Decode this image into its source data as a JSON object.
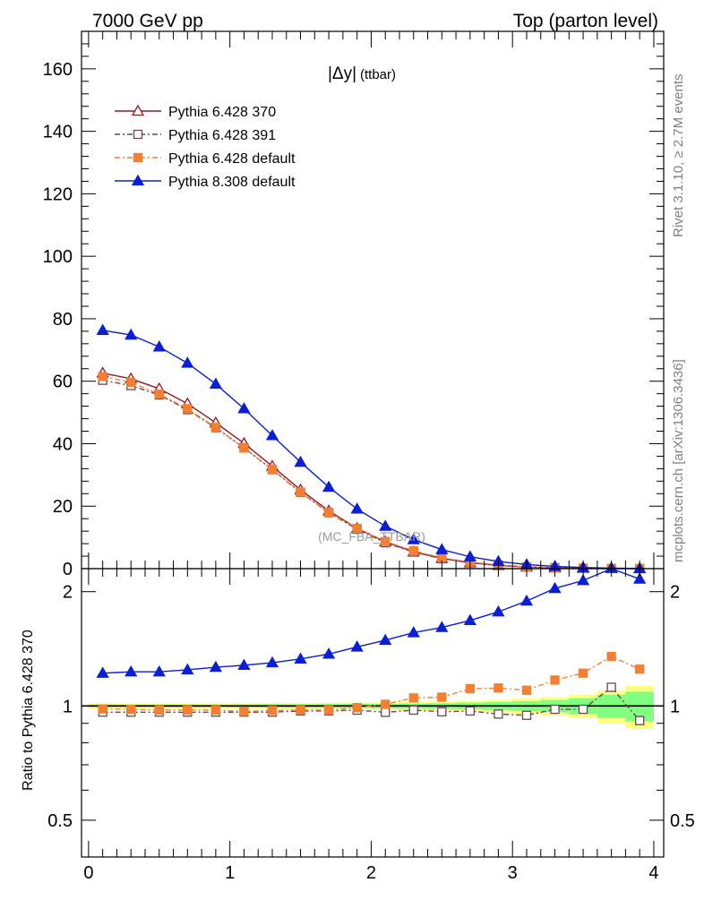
{
  "header": {
    "left": "7000 GeV pp",
    "right": "Top (parton level)"
  },
  "side_labels": {
    "rivet": "Rivet 3.1.10, ≥ 2.7M events",
    "mcplots": "mcplots.cern.ch [arXiv:1306.3436]"
  },
  "watermark": "(MC_FBA_TTBAR)",
  "colors": {
    "p370": "#9b1520",
    "p391": "#6e4456",
    "pdef": "#f47f30",
    "p8": "#0a1ed6",
    "band_outer": "#ffff80",
    "band_inner": "#80ff80"
  },
  "chart_data": [
    {
      "type": "line",
      "title_main": "|Δy|",
      "title_sub": "(ttbar)",
      "xlim": [
        -0.05,
        4.07
      ],
      "ylim": [
        0,
        172
      ],
      "yticks": [
        0,
        20,
        40,
        60,
        80,
        100,
        120,
        140,
        160
      ],
      "x": [
        0.1,
        0.3,
        0.5,
        0.7,
        0.9,
        1.1,
        1.3,
        1.5,
        1.7,
        1.9,
        2.1,
        2.3,
        2.5,
        2.7,
        2.9,
        3.1,
        3.3,
        3.5,
        3.7,
        3.9
      ],
      "series": [
        {
          "name": "Pythia 6.428 370",
          "key": "p370",
          "marker": "triangle-open",
          "dash": "",
          "values": [
            62.6,
            60.8,
            57.6,
            52.8,
            46.7,
            40.1,
            32.8,
            25.2,
            18.5,
            12.9,
            8.6,
            5.4,
            3.3,
            1.9,
            1.05,
            0.55,
            0.28,
            0.13,
            0.06,
            0.025
          ]
        },
        {
          "name": "Pythia 6.428 391",
          "key": "p391",
          "marker": "square-open",
          "dash": "6,3,2,3",
          "values": [
            60.3,
            58.6,
            55.6,
            50.9,
            45.1,
            38.7,
            31.7,
            24.4,
            17.9,
            12.6,
            8.3,
            5.3,
            3.2,
            1.85,
            1.0,
            0.52,
            0.27,
            0.125,
            0.065,
            0.023
          ]
        },
        {
          "name": "Pythia 6.428 default",
          "key": "pdef",
          "marker": "square-filled",
          "dash": "6,3,2,3",
          "values": [
            61.5,
            59.6,
            55.9,
            51.2,
            45.2,
            38.6,
            31.8,
            24.5,
            18.0,
            12.9,
            8.7,
            5.7,
            3.5,
            2.1,
            1.17,
            0.61,
            0.34,
            0.165,
            0.085,
            0.031
          ]
        },
        {
          "name": "Pythia 8.308 default",
          "key": "p8",
          "marker": "triangle-filled",
          "dash": "",
          "values": [
            76.3,
            74.8,
            71.0,
            65.8,
            59.1,
            51.2,
            42.6,
            34.1,
            26.1,
            19.1,
            13.6,
            9.3,
            6.1,
            3.8,
            2.3,
            1.3,
            0.72,
            0.36,
            0.15,
            0.055
          ]
        }
      ]
    },
    {
      "type": "line",
      "ylabel": "Ratio to Pythia 6.428 370",
      "xlim": [
        -0.05,
        4.07
      ],
      "ylim": [
        0.4,
        2.3
      ],
      "yticks": [
        0.5,
        1,
        2
      ],
      "xticks": [
        0,
        1,
        2,
        3,
        4
      ],
      "reference": 1,
      "x": [
        0.1,
        0.3,
        0.5,
        0.7,
        0.9,
        1.1,
        1.3,
        1.5,
        1.7,
        1.9,
        2.1,
        2.3,
        2.5,
        2.7,
        2.9,
        3.1,
        3.3,
        3.5,
        3.7,
        3.9
      ],
      "band_outer": [
        0.015,
        0.015,
        0.015,
        0.015,
        0.015,
        0.016,
        0.017,
        0.018,
        0.019,
        0.02,
        0.022,
        0.025,
        0.028,
        0.032,
        0.038,
        0.045,
        0.055,
        0.07,
        0.1,
        0.13
      ],
      "band_inner": [
        0.008,
        0.008,
        0.008,
        0.008,
        0.008,
        0.009,
        0.01,
        0.01,
        0.011,
        0.012,
        0.013,
        0.015,
        0.017,
        0.02,
        0.024,
        0.03,
        0.037,
        0.048,
        0.07,
        0.09
      ],
      "series": [
        {
          "name": "Pythia 6.428 391",
          "key": "p391",
          "marker": "square-open",
          "dash": "6,3,2,3",
          "values": [
            0.963,
            0.963,
            0.963,
            0.963,
            0.963,
            0.963,
            0.963,
            0.97,
            0.97,
            0.975,
            0.962,
            0.975,
            0.965,
            0.97,
            0.952,
            0.945,
            0.98,
            0.98,
            1.12,
            0.915
          ]
        },
        {
          "name": "Pythia 6.428 default",
          "key": "pdef",
          "marker": "square-filled",
          "dash": "6,3,2,3",
          "values": [
            0.982,
            0.98,
            0.975,
            0.975,
            0.975,
            0.967,
            0.973,
            0.975,
            0.975,
            0.99,
            1.01,
            1.05,
            1.055,
            1.11,
            1.115,
            1.1,
            1.17,
            1.22,
            1.35,
            1.25
          ]
        },
        {
          "name": "Pythia 8.308 default",
          "key": "p8",
          "marker": "triangle-filled",
          "dash": "",
          "values": [
            1.22,
            1.23,
            1.23,
            1.245,
            1.265,
            1.28,
            1.3,
            1.33,
            1.37,
            1.43,
            1.49,
            1.56,
            1.61,
            1.68,
            1.77,
            1.89,
            2.04,
            2.14,
            2.49,
            2.16
          ]
        }
      ]
    }
  ]
}
